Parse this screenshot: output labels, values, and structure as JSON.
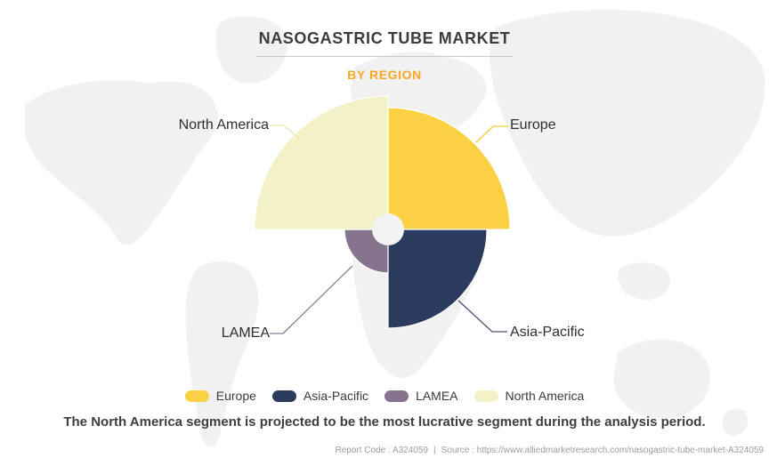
{
  "header": {
    "title": "NASOGASTRIC TUBE MARKET",
    "subtitle": "BY REGION"
  },
  "chart_data": {
    "type": "pie",
    "variant": "quarter-rose-donut",
    "title": "NASOGASTRIC TUBE MARKET",
    "subtitle": "BY REGION",
    "note": "Four equal 90-degree quadrants; magnitude encoded by radius only, no numeric values shown in figure",
    "legend_position": "bottom",
    "segments": [
      {
        "label": "Europe",
        "quadrant": "top-right",
        "radius_px": 137,
        "color": "#FBD144",
        "callout_line_color": "#F6C93E"
      },
      {
        "label": "Asia-Pacific",
        "quadrant": "bottom-right",
        "radius_px": 111,
        "color": "#2B3B5E",
        "callout_line_color": "#47537B"
      },
      {
        "label": "LAMEA",
        "quadrant": "bottom-left",
        "radius_px": 49,
        "color": "#86748E",
        "callout_line_color": "#8F7E99"
      },
      {
        "label": "North America",
        "quadrant": "top-left",
        "radius_px": 150,
        "color": "#F3F1C7",
        "callout_line_color": "#E9E6AF"
      }
    ]
  },
  "statement": "The North America segment is projected to be the most lucrative segment during the analysis period.",
  "footer": {
    "report_code": "Report Code : A324059",
    "separator": "|",
    "source": "Source : https://www.alliedmarketresearch.com/nasogastric-tube-market-A324059"
  },
  "colors": {
    "accent_orange": "#F8A823",
    "title_text": "#3C3C3C",
    "statement_text": "#3E3E3E",
    "footer_text": "#9C9C9C",
    "label_text": "#2E2E2E",
    "legend_text": "#3B3B3B",
    "divider": "#C9C9C9",
    "map_fill": "#F1F1F1",
    "hole_fill": "#F3F3F3"
  }
}
